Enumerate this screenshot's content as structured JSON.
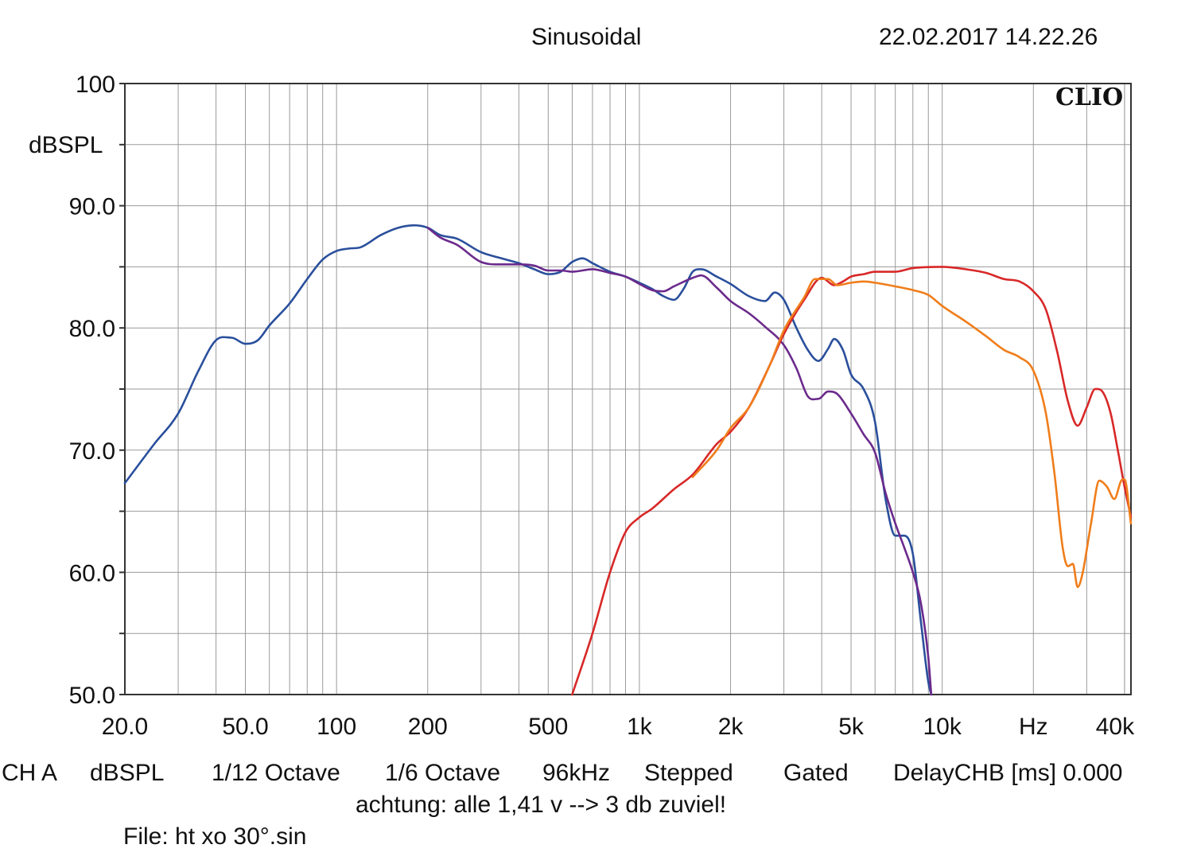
{
  "header": {
    "title": "Sinusoidal",
    "timestamp": "22.02.2017 14.22.26",
    "brand": "CLIO"
  },
  "chart_data": {
    "type": "line",
    "title": "Sinusoidal",
    "xscale": "log",
    "xlim": [
      20,
      42000
    ],
    "ylim": [
      50,
      100
    ],
    "ylabel": "dBSPL",
    "xlabel": "Hz",
    "y_ticks": [
      {
        "value": 100,
        "label": "100"
      },
      {
        "value": 90,
        "label": "90.0"
      },
      {
        "value": 80,
        "label": "80.0"
      },
      {
        "value": 70,
        "label": "70.0"
      },
      {
        "value": 60,
        "label": "60.0"
      },
      {
        "value": 50,
        "label": "50.0"
      }
    ],
    "x_ticks": [
      {
        "value": 20,
        "label": "20.0"
      },
      {
        "value": 50,
        "label": "50.0"
      },
      {
        "value": 100,
        "label": "100"
      },
      {
        "value": 200,
        "label": "200"
      },
      {
        "value": 500,
        "label": "500"
      },
      {
        "value": 1000,
        "label": "1k"
      },
      {
        "value": 2000,
        "label": "2k"
      },
      {
        "value": 5000,
        "label": "5k"
      },
      {
        "value": 10000,
        "label": "10k"
      },
      {
        "value": 20000,
        "label": "Hz"
      },
      {
        "value": 40000,
        "label": "40k"
      }
    ],
    "grid": true,
    "series": [
      {
        "name": "blue",
        "color": "#2a4f9c",
        "points": [
          [
            20,
            67.3
          ],
          [
            25,
            70.5
          ],
          [
            30,
            73
          ],
          [
            35,
            76.5
          ],
          [
            40,
            79
          ],
          [
            45,
            79.2
          ],
          [
            50,
            78.7
          ],
          [
            55,
            79
          ],
          [
            60,
            80.2
          ],
          [
            70,
            82
          ],
          [
            80,
            84
          ],
          [
            90,
            85.6
          ],
          [
            100,
            86.3
          ],
          [
            110,
            86.5
          ],
          [
            120,
            86.6
          ],
          [
            140,
            87.6
          ],
          [
            160,
            88.2
          ],
          [
            180,
            88.4
          ],
          [
            200,
            88.2
          ],
          [
            220,
            87.6
          ],
          [
            250,
            87.3
          ],
          [
            300,
            86.2
          ],
          [
            350,
            85.7
          ],
          [
            400,
            85.3
          ],
          [
            450,
            84.8
          ],
          [
            500,
            84.4
          ],
          [
            550,
            84.6
          ],
          [
            600,
            85.4
          ],
          [
            650,
            85.7
          ],
          [
            700,
            85.3
          ],
          [
            800,
            84.6
          ],
          [
            900,
            84.2
          ],
          [
            1000,
            83.7
          ],
          [
            1100,
            83.2
          ],
          [
            1200,
            82.6
          ],
          [
            1300,
            82.3
          ],
          [
            1400,
            83.2
          ],
          [
            1500,
            84.6
          ],
          [
            1600,
            84.8
          ],
          [
            1800,
            84.2
          ],
          [
            2000,
            83.6
          ],
          [
            2300,
            82.6
          ],
          [
            2600,
            82.2
          ],
          [
            2800,
            82.9
          ],
          [
            3000,
            82.3
          ],
          [
            3300,
            80
          ],
          [
            3600,
            78.2
          ],
          [
            3900,
            77.3
          ],
          [
            4200,
            78.3
          ],
          [
            4400,
            79.1
          ],
          [
            4700,
            78.2
          ],
          [
            5000,
            76.2
          ],
          [
            5500,
            75
          ],
          [
            6000,
            72.3
          ],
          [
            6500,
            66
          ],
          [
            7000,
            63
          ],
          [
            7500,
            63
          ],
          [
            8000,
            61.5
          ],
          [
            8500,
            56
          ],
          [
            9000,
            51
          ],
          [
            9200,
            50
          ]
        ]
      },
      {
        "name": "purple",
        "color": "#6b2a8c",
        "points": [
          [
            200,
            88.2
          ],
          [
            220,
            87.4
          ],
          [
            250,
            86.8
          ],
          [
            300,
            85.4
          ],
          [
            350,
            85.2
          ],
          [
            400,
            85.2
          ],
          [
            450,
            85.1
          ],
          [
            500,
            84.7
          ],
          [
            550,
            84.7
          ],
          [
            600,
            84.6
          ],
          [
            700,
            84.8
          ],
          [
            800,
            84.5
          ],
          [
            900,
            84.2
          ],
          [
            1000,
            83.6
          ],
          [
            1100,
            83.1
          ],
          [
            1200,
            83
          ],
          [
            1300,
            83.4
          ],
          [
            1500,
            84.1
          ],
          [
            1600,
            84.3
          ],
          [
            1800,
            83.3
          ],
          [
            2000,
            82.2
          ],
          [
            2300,
            81.2
          ],
          [
            2600,
            80.1
          ],
          [
            3000,
            78.6
          ],
          [
            3300,
            76.7
          ],
          [
            3600,
            74.4
          ],
          [
            3900,
            74.2
          ],
          [
            4200,
            74.8
          ],
          [
            4500,
            74.6
          ],
          [
            5000,
            73
          ],
          [
            5500,
            71.3
          ],
          [
            6000,
            69.8
          ],
          [
            6500,
            66.5
          ],
          [
            7000,
            64
          ],
          [
            7500,
            62
          ],
          [
            8000,
            60
          ],
          [
            8500,
            57.5
          ],
          [
            9000,
            53
          ],
          [
            9200,
            50
          ]
        ]
      },
      {
        "name": "red",
        "color": "#d82828",
        "points": [
          [
            600,
            50
          ],
          [
            700,
            55
          ],
          [
            800,
            60
          ],
          [
            900,
            63.3
          ],
          [
            1000,
            64.5
          ],
          [
            1100,
            65.2
          ],
          [
            1300,
            66.8
          ],
          [
            1500,
            68
          ],
          [
            1800,
            70.5
          ],
          [
            2000,
            71.5
          ],
          [
            2300,
            73.5
          ],
          [
            2700,
            77
          ],
          [
            3000,
            79.5
          ],
          [
            3500,
            82.3
          ],
          [
            4000,
            84.1
          ],
          [
            4400,
            83.5
          ],
          [
            4700,
            83.8
          ],
          [
            5000,
            84.2
          ],
          [
            5500,
            84.4
          ],
          [
            6000,
            84.6
          ],
          [
            7000,
            84.6
          ],
          [
            8000,
            84.9
          ],
          [
            10000,
            85
          ],
          [
            12000,
            84.8
          ],
          [
            14000,
            84.5
          ],
          [
            16000,
            84
          ],
          [
            18000,
            83.8
          ],
          [
            20000,
            83
          ],
          [
            22000,
            81.5
          ],
          [
            24000,
            78
          ],
          [
            26000,
            74
          ],
          [
            28000,
            72
          ],
          [
            30000,
            73.5
          ],
          [
            32000,
            75
          ],
          [
            34000,
            74.7
          ],
          [
            36000,
            73
          ],
          [
            38000,
            70
          ],
          [
            40000,
            67
          ],
          [
            42000,
            64.5
          ]
        ]
      },
      {
        "name": "orange",
        "color": "#f07d1a",
        "points": [
          [
            1500,
            67.8
          ],
          [
            1800,
            70
          ],
          [
            2000,
            71.8
          ],
          [
            2300,
            73.5
          ],
          [
            2700,
            77
          ],
          [
            3000,
            79.8
          ],
          [
            3500,
            82.5
          ],
          [
            3800,
            84
          ],
          [
            4200,
            84
          ],
          [
            4500,
            83.5
          ],
          [
            5000,
            83.7
          ],
          [
            5500,
            83.8
          ],
          [
            6000,
            83.7
          ],
          [
            7000,
            83.4
          ],
          [
            8000,
            83.1
          ],
          [
            9000,
            82.7
          ],
          [
            10000,
            81.8
          ],
          [
            12000,
            80.5
          ],
          [
            14000,
            79.3
          ],
          [
            16000,
            78.2
          ],
          [
            18000,
            77.6
          ],
          [
            20000,
            76.5
          ],
          [
            22000,
            73
          ],
          [
            23500,
            68
          ],
          [
            25000,
            62
          ],
          [
            26000,
            60.5
          ],
          [
            27000,
            60.7
          ],
          [
            28000,
            58.8
          ],
          [
            29000,
            59.8
          ],
          [
            31000,
            64
          ],
          [
            33000,
            67.5
          ],
          [
            35000,
            67
          ],
          [
            37000,
            66
          ],
          [
            39000,
            67.5
          ],
          [
            40000,
            67.6
          ],
          [
            42000,
            64
          ]
        ]
      }
    ]
  },
  "footer": {
    "line1": [
      "CH A",
      "dBSPL",
      "1/12 Octave",
      "1/6 Octave",
      "96kHz",
      "Stepped",
      "Gated",
      "DelayCHB [ms] 0.000"
    ],
    "note": "achtung: alle 1,41 v --> 3 db zuviel!",
    "file": "File: ht xo 30°.sin"
  }
}
